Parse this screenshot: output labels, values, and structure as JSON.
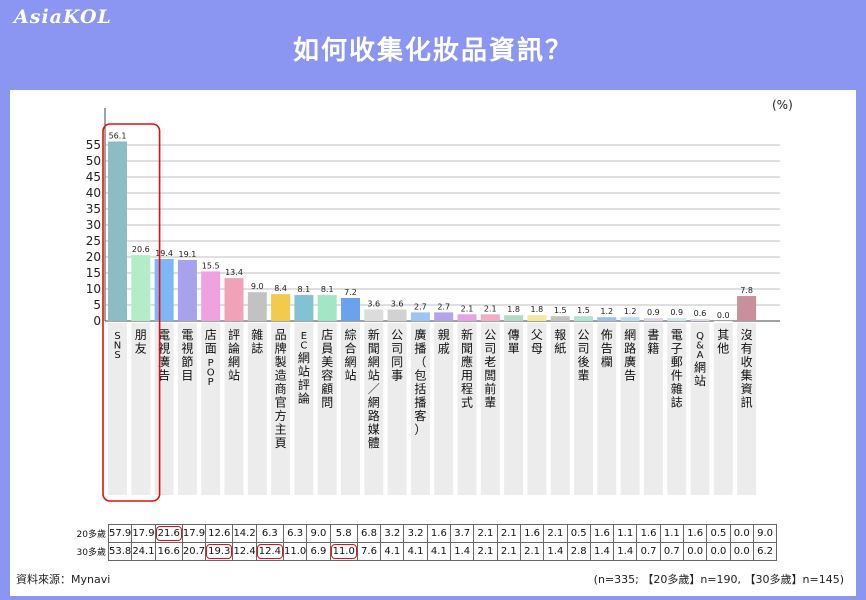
{
  "header": {
    "logo": "AsiaKOL",
    "title": "如何收集化妝品資訊？"
  },
  "unit_label": "(%)",
  "chart_data": {
    "type": "bar",
    "title": "如何收集化妝品資訊？",
    "xlabel": "",
    "ylabel": "",
    "ylim": [
      0,
      60
    ],
    "yticks": [
      0,
      5,
      10,
      15,
      20,
      25,
      30,
      35,
      40,
      45,
      50,
      55
    ],
    "grid": true,
    "categories": [
      "SNS",
      "朋友",
      "電視廣告",
      "電視節目",
      "店面POP",
      "評論網站",
      "雜誌",
      "品牌製造商官方主頁",
      "EC網站評論",
      "店員美容顧問",
      "綜合網站",
      "新聞網站／網路媒體",
      "公司同事",
      "廣播（包括播客）",
      "親戚",
      "新聞應用程式",
      "公司老闆前輩",
      "傳單",
      "父母",
      "報紙",
      "公司後輩",
      "佈告欄",
      "網路廣告",
      "書籍",
      "電子郵件雜誌",
      "Q&A網站",
      "其他",
      "沒有收集資訊"
    ],
    "values": [
      56.1,
      20.6,
      19.4,
      19.1,
      15.5,
      13.4,
      9.0,
      8.4,
      8.1,
      8.1,
      7.2,
      3.6,
      3.6,
      2.7,
      2.7,
      2.1,
      2.1,
      1.8,
      1.8,
      1.5,
      1.5,
      1.2,
      1.2,
      0.9,
      0.9,
      0.6,
      0.0,
      7.8
    ],
    "value_labels": [
      "56.1",
      "20.6",
      "19.4",
      "19.1",
      "15.5",
      "13.4",
      "9.0",
      "8.4",
      "8.1",
      "8.1",
      "7.2",
      "3.6",
      "3.6",
      "2.7",
      "2.7",
      "2.1",
      "2.1",
      "1.8",
      "1.8",
      "1.5",
      "1.5",
      "1.2",
      "1.2",
      "0.9",
      "0.9",
      "0.6",
      "0.0",
      "7.8"
    ],
    "colors": [
      "#8cbcc4",
      "#b4ecc8",
      "#7fb6f5",
      "#a7a2ee",
      "#eea2e0",
      "#f0a2b8",
      "#c2c2c2",
      "#f2ca4e",
      "#82c2d2",
      "#a2e6c6",
      "#6aa2ef",
      "#dcdcdc",
      "#d2d2d2",
      "#9cc6f2",
      "#b6a2e6",
      "#e6a2e6",
      "#f2aec6",
      "#b2dcc2",
      "#f2ea9a",
      "#c2c2c2",
      "#b2e2d2",
      "#9cc2ec",
      "#bcdcf2",
      "#e2d2f2",
      "#cce6f2",
      "#e6d2ec",
      "#dcdcdc",
      "#c8909a"
    ],
    "highlight_box": "SNS / 朋友",
    "table": {
      "rows": [
        {
          "label": "20多歲",
          "values": [
            "57.9",
            "17.9",
            "21.6",
            "17.9",
            "12.6",
            "14.2",
            "6.3",
            "6.3",
            "9.0",
            "5.8",
            "6.8",
            "3.2",
            "3.2",
            "1.6",
            "3.7",
            "2.1",
            "2.1",
            "1.6",
            "2.1",
            "0.5",
            "1.6",
            "1.1",
            "1.6",
            "1.1",
            "1.6",
            "0.5",
            "0.0",
            "9.0"
          ]
        },
        {
          "label": "30多歲",
          "values": [
            "53.8",
            "24.1",
            "16.6",
            "20.7",
            "19.3",
            "12.4",
            "12.4",
            "11.0",
            "6.9",
            "11.0",
            "7.6",
            "4.1",
            "4.1",
            "4.1",
            "1.4",
            "2.1",
            "2.1",
            "2.1",
            "1.4",
            "2.8",
            "1.4",
            "1.4",
            "0.7",
            "0.7",
            "0.0",
            "0.0",
            "0.0",
            "6.2"
          ]
        }
      ],
      "circled": [
        {
          "row": 0,
          "col": 2
        },
        {
          "row": 1,
          "col": 4
        },
        {
          "row": 1,
          "col": 6
        },
        {
          "row": 1,
          "col": 9
        }
      ]
    }
  },
  "footer": {
    "source": "資料來源：Mynavi",
    "sample": "(n=335; 【20多歲】n=190, 【30多歲】n=145)"
  }
}
